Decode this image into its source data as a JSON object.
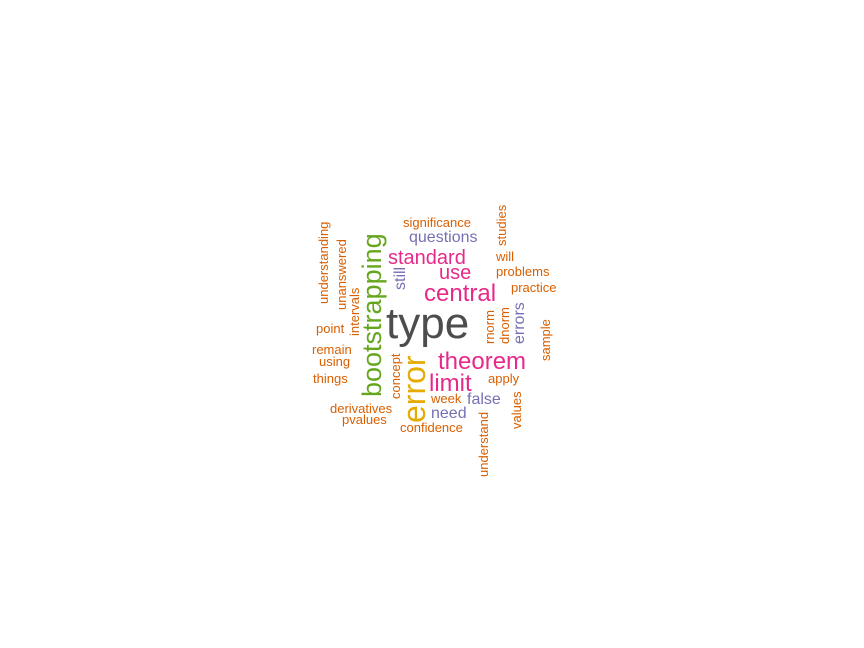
{
  "colors": {
    "gray": "#4d4d4d",
    "orange": "#d95f02",
    "green": "#66a61e",
    "purple": "#7570b3",
    "magenta": "#e7298a",
    "gold": "#e6ab02",
    "background": "#ffffff"
  },
  "words": [
    {
      "id": "type",
      "text": "type",
      "color": "gray"
    },
    {
      "id": "error",
      "text": "error",
      "color": "gold"
    },
    {
      "id": "bootstrapping",
      "text": "bootstrapping",
      "color": "green"
    },
    {
      "id": "central",
      "text": "central",
      "color": "magenta"
    },
    {
      "id": "theorem",
      "text": "theorem",
      "color": "magenta"
    },
    {
      "id": "limit",
      "text": "limit",
      "color": "magenta"
    },
    {
      "id": "standard",
      "text": "standard",
      "color": "magenta"
    },
    {
      "id": "use",
      "text": "use",
      "color": "magenta"
    },
    {
      "id": "questions",
      "text": "questions",
      "color": "purple"
    },
    {
      "id": "errors",
      "text": "errors",
      "color": "purple"
    },
    {
      "id": "need",
      "text": "need",
      "color": "purple"
    },
    {
      "id": "false",
      "text": "false",
      "color": "purple"
    },
    {
      "id": "still",
      "text": "still",
      "color": "purple"
    },
    {
      "id": "significance",
      "text": "significance",
      "color": "orange"
    },
    {
      "id": "studies",
      "text": "studies",
      "color": "orange"
    },
    {
      "id": "will",
      "text": "will",
      "color": "orange"
    },
    {
      "id": "problems",
      "text": "problems",
      "color": "orange"
    },
    {
      "id": "practice",
      "text": "practice",
      "color": "orange"
    },
    {
      "id": "sample",
      "text": "sample",
      "color": "orange"
    },
    {
      "id": "rnorm",
      "text": "rnorm",
      "color": "orange"
    },
    {
      "id": "dnorm",
      "text": "dnorm",
      "color": "orange"
    },
    {
      "id": "apply",
      "text": "apply",
      "color": "orange"
    },
    {
      "id": "values",
      "text": "values",
      "color": "orange"
    },
    {
      "id": "understand",
      "text": "understand",
      "color": "orange"
    },
    {
      "id": "week",
      "text": "week",
      "color": "orange"
    },
    {
      "id": "confidence",
      "text": "confidence",
      "color": "orange"
    },
    {
      "id": "concept",
      "text": "concept",
      "color": "orange"
    },
    {
      "id": "derivatives",
      "text": "derivatives",
      "color": "orange"
    },
    {
      "id": "pvalues",
      "text": "pvalues",
      "color": "orange"
    },
    {
      "id": "things",
      "text": "things",
      "color": "orange"
    },
    {
      "id": "using",
      "text": "using",
      "color": "orange"
    },
    {
      "id": "remain",
      "text": "remain",
      "color": "orange"
    },
    {
      "id": "point",
      "text": "point",
      "color": "orange"
    },
    {
      "id": "intervals",
      "text": "intervals",
      "color": "orange"
    },
    {
      "id": "unanswered",
      "text": "unanswered",
      "color": "orange"
    },
    {
      "id": "understanding",
      "text": "understanding",
      "color": "orange"
    }
  ]
}
